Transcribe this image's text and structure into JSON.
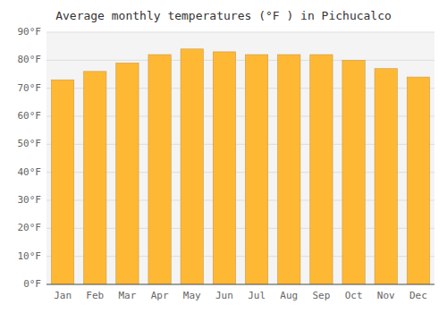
{
  "chart_data": {
    "type": "bar",
    "title": "Average monthly temperatures (°F ) in Pichucalco",
    "categories": [
      "Jan",
      "Feb",
      "Mar",
      "Apr",
      "May",
      "Jun",
      "Jul",
      "Aug",
      "Sep",
      "Oct",
      "Nov",
      "Dec"
    ],
    "values": [
      73,
      76,
      79,
      82,
      84,
      83,
      82,
      82,
      82,
      80,
      77,
      74
    ],
    "color": "#FFB833",
    "ylim": [
      0,
      90
    ],
    "yticks": [
      {
        "value": 0,
        "label": "0°F"
      },
      {
        "value": 10,
        "label": "10°F"
      },
      {
        "value": 20,
        "label": "20°F"
      },
      {
        "value": 30,
        "label": "30°F"
      },
      {
        "value": 40,
        "label": "40°F"
      },
      {
        "value": 50,
        "label": "50°F"
      },
      {
        "value": 60,
        "label": "60°F"
      },
      {
        "value": 70,
        "label": "70°F"
      },
      {
        "value": 80,
        "label": "80°F"
      },
      {
        "value": 90,
        "label": "90°F"
      }
    ],
    "grid": true
  }
}
